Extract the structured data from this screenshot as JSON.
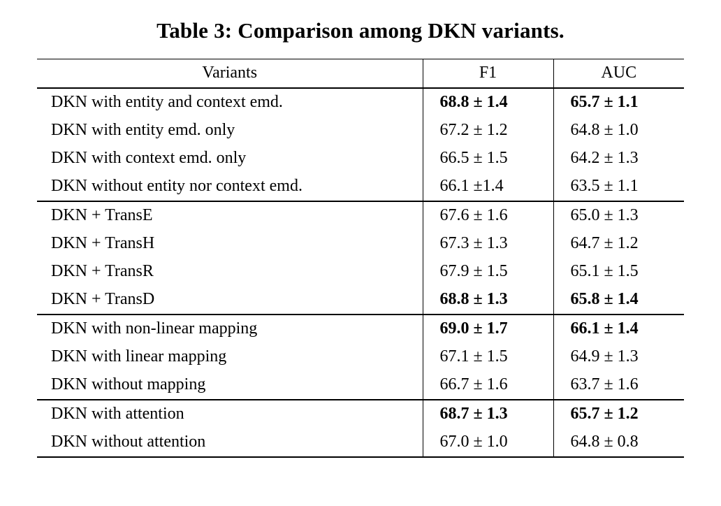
{
  "title": "Table 3: Comparison among DKN variants.",
  "table": {
    "headers": [
      "Variants",
      "F1",
      "AUC"
    ],
    "groups": [
      {
        "rows": [
          {
            "variant": "DKN with entity and context emd.",
            "f1": "68.8 ± 1.4",
            "auc": "65.7 ± 1.1",
            "bold": true
          },
          {
            "variant": "DKN with entity emd. only",
            "f1": "67.2 ± 1.2",
            "auc": "64.8 ± 1.0",
            "bold": false
          },
          {
            "variant": "DKN with context emd. only",
            "f1": "66.5 ± 1.5",
            "auc": "64.2 ± 1.3",
            "bold": false
          },
          {
            "variant": "DKN without entity nor context emd.",
            "f1": "66.1 ±1.4",
            "auc": "63.5 ± 1.1",
            "bold": false
          }
        ]
      },
      {
        "rows": [
          {
            "variant": "DKN + TransE",
            "f1": "67.6 ± 1.6",
            "auc": "65.0 ± 1.3",
            "bold": false
          },
          {
            "variant": "DKN + TransH",
            "f1": "67.3 ± 1.3",
            "auc": "64.7 ± 1.2",
            "bold": false
          },
          {
            "variant": "DKN + TransR",
            "f1": "67.9 ± 1.5",
            "auc": "65.1 ± 1.5",
            "bold": false
          },
          {
            "variant": "DKN + TransD",
            "f1": "68.8 ± 1.3",
            "auc": "65.8 ± 1.4",
            "bold": true
          }
        ]
      },
      {
        "rows": [
          {
            "variant": "DKN with non-linear mapping",
            "f1": "69.0 ± 1.7",
            "auc": "66.1 ± 1.4",
            "bold": true
          },
          {
            "variant": "DKN with linear mapping",
            "f1": "67.1 ± 1.5",
            "auc": "64.9 ± 1.3",
            "bold": false
          },
          {
            "variant": "DKN without mapping",
            "f1": "66.7 ± 1.6",
            "auc": "63.7 ± 1.6",
            "bold": false
          }
        ]
      },
      {
        "rows": [
          {
            "variant": "DKN with attention",
            "f1": "68.7 ± 1.3",
            "auc": "65.7 ± 1.2",
            "bold": true
          },
          {
            "variant": "DKN without attention",
            "f1": "67.0 ± 1.0",
            "auc": "64.8 ± 0.8",
            "bold": false
          }
        ]
      }
    ]
  }
}
